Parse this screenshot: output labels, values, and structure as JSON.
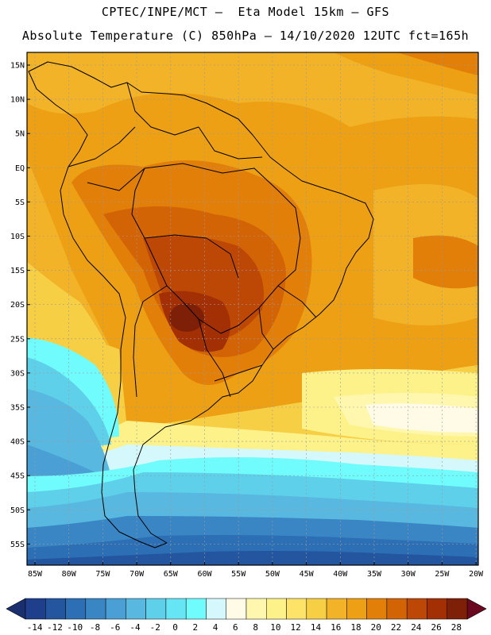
{
  "title": {
    "line1": "CPTEC/INPE/MCT –  Eta Model 15km – GFS",
    "line2": "Absolute Temperature (C) 850hPa – 14/10/2020 12UTC fct=165h"
  },
  "lat_labels": [
    "15N",
    "10N",
    "5N",
    "EQ",
    "5S",
    "10S",
    "15S",
    "20S",
    "25S",
    "30S",
    "35S",
    "40S",
    "45S",
    "50S",
    "55S"
  ],
  "lon_labels": [
    "85W",
    "80W",
    "75W",
    "70W",
    "65W",
    "60W",
    "55W",
    "50W",
    "45W",
    "40W",
    "35W",
    "30W",
    "25W",
    "20W"
  ],
  "colorbar": {
    "labels": [
      "-14",
      "-12",
      "-10",
      "-8",
      "-6",
      "-4",
      "-2",
      "0",
      "2",
      "4",
      "6",
      "8",
      "10",
      "12",
      "14",
      "16",
      "18",
      "20",
      "22",
      "24",
      "26",
      "28"
    ],
    "colors": [
      "#1f3e8c",
      "#2456a0",
      "#2d6fb4",
      "#3a86c5",
      "#4aa0d4",
      "#58b8e0",
      "#5fd0ea",
      "#66e6f4",
      "#70fcfc",
      "#d4f8fc",
      "#fffbe6",
      "#fff7ae",
      "#fdf28a",
      "#fde469",
      "#f7cf44",
      "#f2b328",
      "#eda014",
      "#e17f08",
      "#d36406",
      "#bd4805",
      "#a23004",
      "#7e1f08"
    ]
  }
}
